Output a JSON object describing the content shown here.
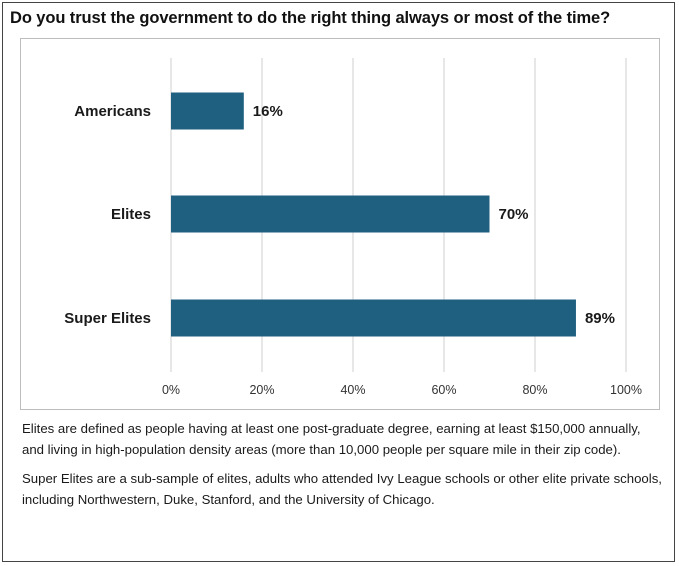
{
  "title": "Do you trust the government to do the right thing always or most of the time?",
  "chart_data": {
    "type": "bar",
    "orientation": "horizontal",
    "categories": [
      "Americans",
      "Elites",
      "Super Elites"
    ],
    "values": [
      16,
      70,
      89
    ],
    "value_labels": [
      "16%",
      "70%",
      "89%"
    ],
    "xlim": [
      0,
      100
    ],
    "x_ticks": [
      0,
      20,
      40,
      60,
      80,
      100
    ],
    "x_tick_labels": [
      "0%",
      "20%",
      "40%",
      "60%",
      "80%",
      "100%"
    ],
    "grid": true,
    "bar_color": "#1f5f80"
  },
  "notes": [
    "Elites are defined as people having at least one post-graduate degree, earning at least $150,000 annually, and living in high-population density areas (more than 10,000 people per square mile in their zip code).",
    "Super Elites are a sub-sample of elites, adults who attended Ivy League schools or other elite private schools, including Northwestern, Duke, Stanford, and the University of Chicago."
  ]
}
